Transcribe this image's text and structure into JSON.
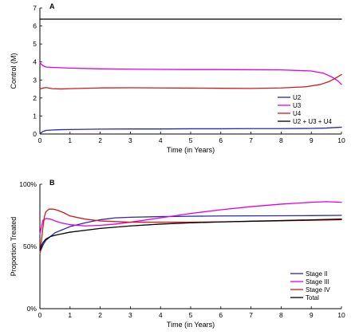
{
  "chart_data": [
    {
      "type": "line",
      "panel_label": "A",
      "xlabel": "Time (in Years)",
      "ylabel": "Control (M)",
      "xlim": [
        0,
        10
      ],
      "ylim": [
        0,
        7
      ],
      "xticks": [
        "0",
        "1",
        "2",
        "3",
        "4",
        "5",
        "6",
        "7",
        "8",
        "9",
        "10"
      ],
      "yticks": [
        "0",
        "1",
        "2",
        "3",
        "4",
        "5",
        "6",
        "7"
      ],
      "legend_position": "bottom-right",
      "series": [
        {
          "name": "U2",
          "color": "#2a2aa8",
          "x": [
            0,
            0.1,
            0.2,
            0.4,
            0.7,
            1,
            2,
            3,
            4,
            5,
            6,
            7,
            8,
            9,
            9.5,
            10
          ],
          "y": [
            0.02,
            0.14,
            0.2,
            0.22,
            0.24,
            0.25,
            0.27,
            0.28,
            0.28,
            0.29,
            0.29,
            0.3,
            0.3,
            0.31,
            0.33,
            0.38
          ]
        },
        {
          "name": "U3",
          "color": "#e000e0",
          "x": [
            0,
            0.1,
            0.2,
            0.4,
            1,
            2,
            3,
            4,
            5,
            6,
            7,
            8,
            9,
            9.4,
            9.7,
            9.9,
            10
          ],
          "y": [
            3.95,
            3.8,
            3.72,
            3.7,
            3.66,
            3.62,
            3.6,
            3.59,
            3.58,
            3.58,
            3.57,
            3.56,
            3.5,
            3.38,
            3.15,
            2.92,
            2.75
          ]
        },
        {
          "name": "U4",
          "color": "#d01818",
          "x": [
            0,
            0.1,
            0.2,
            0.4,
            0.7,
            1,
            2,
            3,
            4,
            5,
            6,
            7,
            8,
            8.8,
            9.3,
            9.6,
            9.8,
            10
          ],
          "y": [
            2.5,
            2.55,
            2.58,
            2.52,
            2.5,
            2.52,
            2.56,
            2.57,
            2.56,
            2.55,
            2.54,
            2.53,
            2.56,
            2.62,
            2.75,
            2.92,
            3.1,
            3.3
          ]
        },
        {
          "name": "U2 + U3 + U4",
          "color": "#000000",
          "x": [
            0,
            10
          ],
          "y": [
            6.38,
            6.38
          ]
        }
      ]
    },
    {
      "type": "line",
      "panel_label": "B",
      "xlabel": "Time (in Years)",
      "ylabel": "Proportion Treated",
      "xlim": [
        0,
        10
      ],
      "ylim": [
        0,
        100
      ],
      "xticks": [
        "0",
        "1",
        "2",
        "3",
        "4",
        "5",
        "6",
        "7",
        "8",
        "9",
        "10"
      ],
      "yticks": [
        "0%",
        "50%",
        "100%"
      ],
      "legend_position": "bottom-right",
      "series": [
        {
          "name": "Stage II",
          "color": "#2a2aa8",
          "x": [
            0,
            0.1,
            0.2,
            0.35,
            0.5,
            0.7,
            1,
            1.5,
            2,
            2.5,
            3,
            4,
            5,
            6,
            7,
            8,
            9,
            10
          ],
          "y": [
            45,
            51,
            55,
            58,
            61,
            63,
            66,
            69,
            71.5,
            73,
            73.5,
            74,
            74.3,
            74.5,
            74.6,
            74.7,
            74.8,
            75
          ]
        },
        {
          "name": "Stage III",
          "color": "#e000e0",
          "x": [
            0,
            0.1,
            0.2,
            0.35,
            0.5,
            0.7,
            1,
            1.5,
            2,
            2.5,
            3,
            4,
            5,
            6,
            7,
            8,
            9,
            9.5,
            10
          ],
          "y": [
            60,
            71,
            72.5,
            72,
            70.5,
            69,
            67.5,
            66.5,
            67,
            68,
            69.5,
            73,
            76.5,
            79.5,
            82,
            84,
            85.5,
            86,
            85.5
          ]
        },
        {
          "name": "Stage IV",
          "color": "#d01818",
          "x": [
            0,
            0.1,
            0.15,
            0.2,
            0.3,
            0.45,
            0.6,
            0.8,
            1,
            1.5,
            2,
            3,
            4,
            5,
            6,
            7,
            8,
            9,
            10
          ],
          "y": [
            44,
            65,
            74,
            78,
            80,
            80,
            79,
            77,
            74.5,
            72,
            70.5,
            69.5,
            69.5,
            69.5,
            69.8,
            70.2,
            70.6,
            71,
            71.5
          ]
        },
        {
          "name": "Total",
          "color": "#000000",
          "x": [
            0,
            0.1,
            0.2,
            0.35,
            0.5,
            0.7,
            1,
            1.5,
            2,
            3,
            4,
            5,
            6,
            7,
            8,
            9,
            10
          ],
          "y": [
            47,
            53,
            56,
            58,
            59,
            60,
            61.5,
            63,
            64.5,
            66.5,
            68,
            69,
            69.7,
            70.3,
            70.8,
            71.4,
            72
          ]
        }
      ]
    }
  ]
}
